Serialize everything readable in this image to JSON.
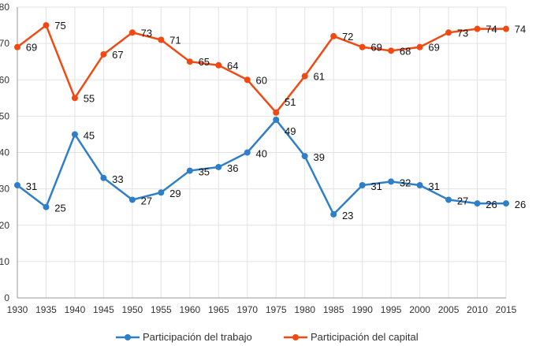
{
  "chart_data": {
    "type": "line",
    "title": "",
    "xlabel": "",
    "ylabel": "",
    "x": [
      1930,
      1935,
      1940,
      1945,
      1950,
      1955,
      1960,
      1965,
      1970,
      1975,
      1980,
      1985,
      1990,
      1995,
      2000,
      2005,
      2010,
      2015
    ],
    "ylim": [
      0,
      80
    ],
    "yticks": [
      0,
      10,
      20,
      30,
      40,
      50,
      60,
      70,
      80
    ],
    "grid": true,
    "legend_position": "bottom",
    "series": [
      {
        "name": "Participación  del trabajo",
        "color": "#2f7fc8",
        "values": [
          31,
          25,
          45,
          33,
          27,
          29,
          35,
          36,
          40,
          49,
          39,
          23,
          31,
          32,
          31,
          27,
          26,
          26
        ]
      },
      {
        "name": "Participación  del capital",
        "color": "#f04a12",
        "values": [
          69,
          75,
          55,
          67,
          73,
          71,
          65,
          64,
          60,
          51,
          61,
          72,
          69,
          68,
          69,
          73,
          74,
          74
        ]
      }
    ]
  }
}
